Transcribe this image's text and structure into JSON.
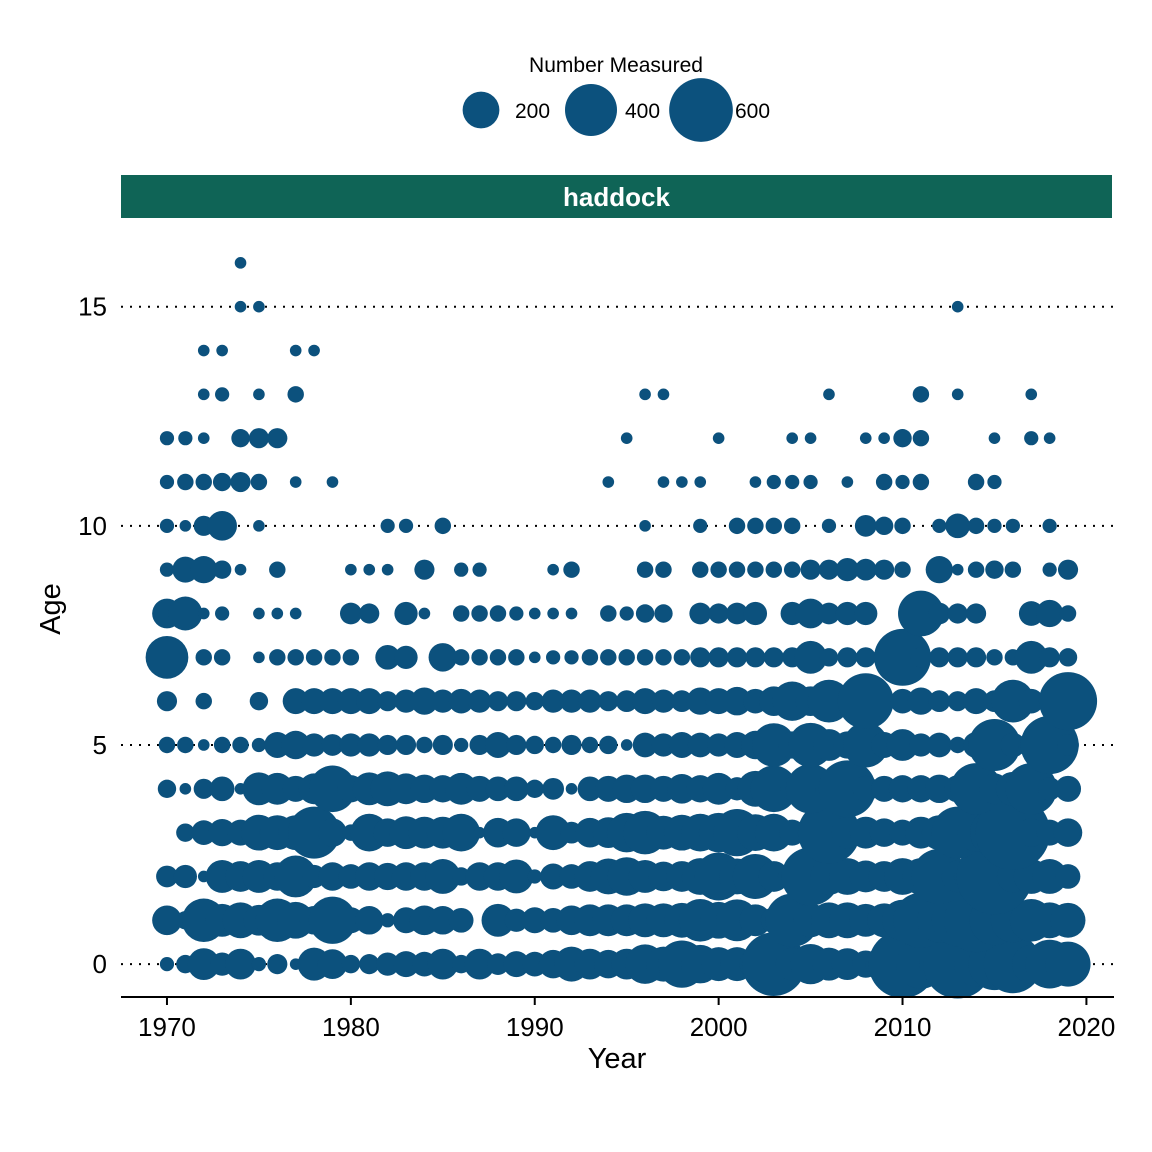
{
  "colors": {
    "point": "#0c517d",
    "strip": "#0f6456",
    "grid": "#000000"
  },
  "chart_data": {
    "type": "scatter",
    "title": "",
    "panel": "haddock",
    "xlabel": "Year",
    "ylabel": "Age",
    "xlim": [
      1967.5,
      2021.5
    ],
    "ylim": [
      -0.75,
      16.75
    ],
    "xticks": [
      1970,
      1980,
      1990,
      2000,
      2010,
      2020
    ],
    "yticks": [
      0,
      5,
      10,
      15
    ],
    "grid": "dotted horizontal lines at major y ticks",
    "legend": {
      "title": "Number Measured",
      "position": "top",
      "entries": [
        {
          "label": "200",
          "value": 200
        },
        {
          "label": "400",
          "value": 400
        },
        {
          "label": "600",
          "value": 600
        }
      ]
    },
    "size_encoding": "point area proportional to number measured",
    "points": {
      "x": [
        1970,
        1971,
        1972,
        1973,
        1974,
        1975,
        1976,
        1977,
        1978,
        1979,
        1980,
        1981,
        1982,
        1983,
        1984,
        1985,
        1986,
        1987,
        1988,
        1989,
        1990,
        1991,
        1992,
        1993,
        1994,
        1995,
        1996,
        1997,
        1998,
        1999,
        2000,
        2001,
        2002,
        2003,
        2004,
        2005,
        2006,
        2007,
        2008,
        2009,
        2010,
        2011,
        2012,
        2013,
        2014,
        2015,
        2016,
        2017,
        2018,
        2019
      ],
      "ages": [
        0,
        1,
        2,
        3,
        4,
        5,
        6,
        7,
        8,
        9,
        10,
        11,
        12,
        13,
        14,
        15,
        16
      ],
      "n_by_age": [
        [
          30,
          50,
          150,
          80,
          140,
          30,
          60,
          20,
          160,
          130,
          50,
          60,
          80,
          100,
          90,
          140,
          50,
          140,
          70,
          100,
          90,
          120,
          180,
          140,
          120,
          140,
          230,
          180,
          330,
          220,
          170,
          170,
          150,
          600,
          160,
          240,
          160,
          150,
          110,
          200,
          680,
          360,
          240,
          700,
          290,
          400,
          500,
          220,
          350,
          300
        ],
        [
          130,
          50,
          280,
          160,
          190,
          140,
          280,
          200,
          120,
          330,
          100,
          120,
          30,
          100,
          130,
          120,
          90,
          0,
          160,
          80,
          100,
          90,
          130,
          150,
          150,
          150,
          170,
          170,
          180,
          270,
          200,
          260,
          150,
          100,
          420,
          170,
          190,
          190,
          160,
          170,
          250,
          450,
          290,
          400,
          600,
          370,
          290,
          270,
          190,
          180
        ],
        [
          70,
          80,
          20,
          160,
          140,
          160,
          120,
          260,
          80,
          120,
          90,
          120,
          110,
          120,
          120,
          180,
          50,
          120,
          120,
          170,
          30,
          100,
          90,
          140,
          190,
          220,
          160,
          130,
          140,
          200,
          340,
          190,
          300,
          140,
          120,
          500,
          200,
          200,
          150,
          140,
          200,
          200,
          450,
          150,
          290,
          850,
          150,
          180,
          180,
          90
        ],
        [
          0,
          50,
          90,
          110,
          100,
          190,
          180,
          180,
          400,
          120,
          40,
          210,
          120,
          160,
          150,
          150,
          210,
          20,
          130,
          120,
          20,
          180,
          70,
          130,
          140,
          230,
          280,
          170,
          190,
          210,
          230,
          330,
          200,
          210,
          100,
          80,
          570,
          150,
          150,
          120,
          100,
          150,
          180,
          400,
          210,
          350,
          820,
          120,
          100,
          120
        ],
        [
          50,
          20,
          60,
          90,
          20,
          160,
          150,
          100,
          140,
          320,
          110,
          160,
          180,
          140,
          120,
          110,
          150,
          100,
          90,
          90,
          50,
          70,
          20,
          90,
          100,
          120,
          120,
          100,
          130,
          110,
          150,
          80,
          190,
          320,
          80,
          360,
          110,
          480,
          100,
          100,
          110,
          110,
          120,
          110,
          390,
          140,
          170,
          390,
          80,
          100
        ],
        [
          40,
          40,
          20,
          40,
          40,
          30,
          100,
          120,
          80,
          70,
          80,
          80,
          60,
          60,
          40,
          60,
          30,
          60,
          100,
          60,
          50,
          40,
          60,
          40,
          50,
          20,
          90,
          80,
          100,
          90,
          80,
          100,
          120,
          280,
          110,
          290,
          150,
          110,
          300,
          100,
          150,
          80,
          90,
          40,
          100,
          400,
          90,
          100,
          500,
          70
        ],
        [
          60,
          0,
          40,
          0,
          0,
          50,
          0,
          100,
          100,
          100,
          100,
          100,
          60,
          80,
          110,
          80,
          90,
          80,
          60,
          60,
          50,
          80,
          80,
          80,
          60,
          70,
          100,
          80,
          70,
          110,
          100,
          120,
          90,
          130,
          230,
          130,
          270,
          40,
          460,
          0,
          90,
          110,
          70,
          60,
          100,
          70,
          270,
          90,
          60,
          500
        ],
        [
          270,
          0,
          40,
          40,
          0,
          20,
          40,
          40,
          40,
          40,
          40,
          0,
          90,
          80,
          0,
          120,
          40,
          40,
          40,
          40,
          20,
          30,
          30,
          40,
          40,
          40,
          40,
          40,
          40,
          60,
          60,
          60,
          60,
          60,
          60,
          160,
          50,
          60,
          60,
          60,
          480,
          60,
          60,
          60,
          60,
          40,
          40,
          160,
          60,
          50
        ],
        [
          130,
          170,
          20,
          30,
          0,
          20,
          20,
          20,
          0,
          0,
          70,
          60,
          0,
          80,
          20,
          0,
          40,
          40,
          40,
          30,
          20,
          20,
          20,
          0,
          40,
          30,
          50,
          50,
          0,
          70,
          60,
          70,
          80,
          0,
          80,
          130,
          70,
          80,
          80,
          0,
          0,
          310,
          70,
          60,
          60,
          0,
          0,
          90,
          110,
          40
        ],
        [
          30,
          100,
          110,
          50,
          20,
          0,
          40,
          0,
          0,
          0,
          20,
          20,
          20,
          0,
          60,
          0,
          30,
          30,
          0,
          0,
          0,
          20,
          40,
          0,
          0,
          0,
          40,
          40,
          0,
          40,
          40,
          40,
          40,
          40,
          40,
          60,
          60,
          80,
          70,
          60,
          40,
          0,
          110,
          20,
          40,
          50,
          40,
          0,
          30,
          60
        ],
        [
          30,
          20,
          60,
          130,
          0,
          20,
          0,
          0,
          0,
          0,
          0,
          0,
          30,
          30,
          0,
          40,
          0,
          0,
          0,
          0,
          0,
          0,
          0,
          0,
          0,
          0,
          20,
          0,
          0,
          30,
          0,
          40,
          40,
          40,
          40,
          0,
          30,
          0,
          70,
          50,
          40,
          0,
          30,
          90,
          40,
          30,
          30,
          0,
          30,
          0
        ],
        [
          30,
          40,
          40,
          50,
          60,
          40,
          0,
          20,
          0,
          20,
          0,
          0,
          0,
          0,
          0,
          0,
          0,
          0,
          0,
          0,
          0,
          0,
          0,
          0,
          20,
          0,
          0,
          20,
          20,
          20,
          0,
          0,
          20,
          30,
          30,
          30,
          0,
          20,
          0,
          40,
          30,
          40,
          0,
          0,
          40,
          30,
          0,
          0,
          0,
          0
        ],
        [
          30,
          30,
          20,
          0,
          50,
          60,
          60,
          0,
          0,
          0,
          0,
          0,
          0,
          0,
          0,
          0,
          0,
          0,
          0,
          0,
          0,
          0,
          0,
          0,
          0,
          20,
          0,
          0,
          0,
          0,
          20,
          0,
          0,
          0,
          20,
          20,
          0,
          0,
          20,
          20,
          50,
          40,
          0,
          0,
          0,
          20,
          0,
          30,
          20,
          0
        ],
        [
          0,
          0,
          20,
          30,
          0,
          20,
          0,
          40,
          0,
          0,
          0,
          0,
          0,
          0,
          0,
          0,
          0,
          0,
          0,
          0,
          0,
          0,
          0,
          0,
          0,
          0,
          20,
          20,
          0,
          0,
          0,
          0,
          0,
          0,
          0,
          0,
          20,
          0,
          0,
          0,
          0,
          40,
          0,
          20,
          0,
          0,
          0,
          20,
          0,
          0
        ],
        [
          0,
          0,
          20,
          20,
          0,
          0,
          0,
          20,
          20,
          0,
          0,
          0,
          0,
          0,
          0,
          0,
          0,
          0,
          0,
          0,
          0,
          0,
          0,
          0,
          0,
          0,
          0,
          0,
          0,
          0,
          0,
          0,
          0,
          0,
          0,
          0,
          0,
          0,
          0,
          0,
          0,
          0,
          0,
          0,
          0,
          0,
          0,
          0,
          0,
          0
        ],
        [
          0,
          0,
          0,
          0,
          20,
          20,
          0,
          0,
          0,
          0,
          0,
          0,
          0,
          0,
          0,
          0,
          0,
          0,
          0,
          0,
          0,
          0,
          0,
          0,
          0,
          0,
          0,
          0,
          0,
          0,
          0,
          0,
          0,
          0,
          0,
          0,
          0,
          0,
          0,
          0,
          0,
          0,
          0,
          20,
          0,
          0,
          0,
          0,
          0,
          0
        ],
        [
          0,
          0,
          0,
          0,
          20,
          0,
          0,
          0,
          0,
          0,
          0,
          0,
          0,
          0,
          0,
          0,
          0,
          0,
          0,
          0,
          0,
          0,
          0,
          0,
          0,
          0,
          0,
          0,
          0,
          0,
          0,
          0,
          0,
          0,
          0,
          0,
          0,
          0,
          0,
          0,
          0,
          0,
          0,
          0,
          0,
          0,
          0,
          0,
          0,
          0
        ]
      ]
    }
  }
}
